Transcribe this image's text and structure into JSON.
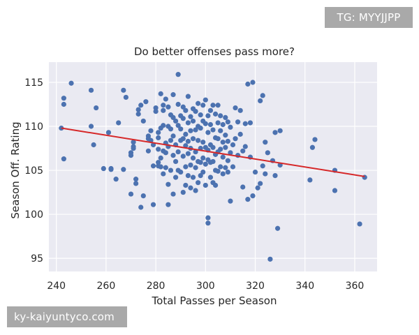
{
  "watermarks": {
    "top": "TG: MYYJJPP",
    "bottom": "ky-kaiyuntyco.com"
  },
  "colors": {
    "plot_bg": "#eaeaf2",
    "grid": "#ffffff",
    "points": "#4c72b0",
    "regression_line": "#d62728"
  },
  "chart_data": {
    "type": "scatter",
    "title": "Do better offenses pass more?",
    "xlabel": "Total Passes per Season",
    "ylabel": "Season Off. Rating",
    "xlim": [
      237,
      369
    ],
    "ylim": [
      93.5,
      117.3
    ],
    "xticks": [
      240,
      260,
      280,
      300,
      320,
      340,
      360
    ],
    "yticks": [
      95,
      100,
      105,
      110,
      115
    ],
    "grid": true,
    "regression": {
      "x1": 242,
      "y1": 109.8,
      "x2": 364,
      "y2": 104.3
    },
    "points": [
      [
        242,
        109.8
      ],
      [
        243,
        113.2
      ],
      [
        243,
        112.5
      ],
      [
        243,
        106.3
      ],
      [
        246,
        114.9
      ],
      [
        254,
        114.1
      ],
      [
        254,
        110.0
      ],
      [
        255,
        107.9
      ],
      [
        256,
        112.1
      ],
      [
        259,
        105.2
      ],
      [
        261,
        109.3
      ],
      [
        262,
        105.2
      ],
      [
        262,
        105.1
      ],
      [
        264,
        104.0
      ],
      [
        265,
        110.4
      ],
      [
        267,
        105.1
      ],
      [
        267,
        114.1
      ],
      [
        268,
        113.3
      ],
      [
        270,
        102.3
      ],
      [
        270,
        107.0
      ],
      [
        270,
        106.7
      ],
      [
        271,
        108.2
      ],
      [
        271,
        107.7
      ],
      [
        271,
        107.5
      ],
      [
        272,
        104.0
      ],
      [
        272,
        103.5
      ],
      [
        273,
        111.9
      ],
      [
        273,
        111.4
      ],
      [
        274,
        112.4
      ],
      [
        274,
        100.8
      ],
      [
        275,
        110.6
      ],
      [
        275,
        102.1
      ],
      [
        276,
        112.8
      ],
      [
        277,
        108.6
      ],
      [
        277,
        108.9
      ],
      [
        277,
        107.2
      ],
      [
        278,
        109.5
      ],
      [
        278,
        108.4
      ],
      [
        279,
        107.9
      ],
      [
        279,
        105.5
      ],
      [
        279,
        101.1
      ],
      [
        280,
        112.1
      ],
      [
        280,
        111.7
      ],
      [
        281,
        109.3
      ],
      [
        281,
        108.7
      ],
      [
        281,
        107.4
      ],
      [
        281,
        105.9
      ],
      [
        281,
        105.5
      ],
      [
        282,
        113.7
      ],
      [
        282,
        109.8
      ],
      [
        282,
        106.4
      ],
      [
        282,
        105.4
      ],
      [
        283,
        112.4
      ],
      [
        283,
        111.8
      ],
      [
        283,
        110.1
      ],
      [
        283,
        107.2
      ],
      [
        283,
        104.6
      ],
      [
        284,
        113.1
      ],
      [
        284,
        108.1
      ],
      [
        284,
        107.0
      ],
      [
        284,
        105.3
      ],
      [
        285,
        112.2
      ],
      [
        285,
        110.0
      ],
      [
        285,
        107.7
      ],
      [
        285,
        103.4
      ],
      [
        285,
        101.1
      ],
      [
        286,
        111.3
      ],
      [
        286,
        109.7
      ],
      [
        286,
        108.4
      ],
      [
        286,
        105.0
      ],
      [
        287,
        113.6
      ],
      [
        287,
        111.0
      ],
      [
        287,
        108.9
      ],
      [
        287,
        106.7
      ],
      [
        287,
        102.3
      ],
      [
        288,
        110.6
      ],
      [
        288,
        107.9
      ],
      [
        288,
        106.0
      ],
      [
        288,
        104.2
      ],
      [
        289,
        112.5
      ],
      [
        289,
        110.1
      ],
      [
        289,
        107.1
      ],
      [
        289,
        105.0
      ],
      [
        289,
        115.9
      ],
      [
        290,
        111.2
      ],
      [
        290,
        109.7
      ],
      [
        290,
        108.4
      ],
      [
        290,
        104.8
      ],
      [
        291,
        112.2
      ],
      [
        291,
        110.9
      ],
      [
        291,
        108.6
      ],
      [
        291,
        106.6
      ],
      [
        291,
        102.5
      ],
      [
        292,
        111.8
      ],
      [
        292,
        109.1
      ],
      [
        292,
        107.8
      ],
      [
        292,
        105.4
      ],
      [
        292,
        103.3
      ],
      [
        293,
        113.4
      ],
      [
        293,
        110.4
      ],
      [
        293,
        108.3
      ],
      [
        293,
        106.9
      ],
      [
        293,
        104.4
      ],
      [
        294,
        111.1
      ],
      [
        294,
        109.5
      ],
      [
        294,
        107.5
      ],
      [
        294,
        105.6
      ],
      [
        294,
        103.0
      ],
      [
        295,
        112.0
      ],
      [
        295,
        110.6
      ],
      [
        295,
        108.6
      ],
      [
        295,
        106.4
      ],
      [
        295,
        104.2
      ],
      [
        296,
        111.7
      ],
      [
        296,
        109.6
      ],
      [
        296,
        107.1
      ],
      [
        296,
        105.3
      ],
      [
        296,
        102.7
      ],
      [
        297,
        112.6
      ],
      [
        297,
        110.0
      ],
      [
        297,
        108.4
      ],
      [
        297,
        106.0
      ],
      [
        297,
        103.6
      ],
      [
        298,
        111.3
      ],
      [
        298,
        109.8
      ],
      [
        298,
        107.5
      ],
      [
        298,
        105.9
      ],
      [
        298,
        104.4
      ],
      [
        299,
        112.4
      ],
      [
        299,
        110.6
      ],
      [
        299,
        108.2
      ],
      [
        299,
        106.4
      ],
      [
        299,
        104.8
      ],
      [
        300,
        113.0
      ],
      [
        300,
        110.3
      ],
      [
        300,
        107.6
      ],
      [
        300,
        105.7
      ],
      [
        300,
        103.3
      ],
      [
        301,
        111.2
      ],
      [
        301,
        109.3
      ],
      [
        301,
        107.3
      ],
      [
        301,
        106.2
      ],
      [
        301,
        99.6
      ],
      [
        301,
        99.0
      ],
      [
        302,
        111.8
      ],
      [
        302,
        110.2
      ],
      [
        302,
        107.9
      ],
      [
        302,
        105.9
      ],
      [
        302,
        104.2
      ],
      [
        303,
        112.4
      ],
      [
        303,
        109.6
      ],
      [
        303,
        107.6
      ],
      [
        303,
        106.0
      ],
      [
        303,
        103.6
      ],
      [
        304,
        111.4
      ],
      [
        304,
        108.7
      ],
      [
        304,
        106.8
      ],
      [
        304,
        105.0
      ],
      [
        304,
        103.3
      ],
      [
        305,
        112.4
      ],
      [
        305,
        110.4
      ],
      [
        305,
        108.6
      ],
      [
        305,
        107.1
      ],
      [
        305,
        104.9
      ],
      [
        306,
        111.2
      ],
      [
        306,
        109.5
      ],
      [
        306,
        107.4
      ],
      [
        306,
        105.4
      ],
      [
        307,
        110.2
      ],
      [
        307,
        108.2
      ],
      [
        307,
        106.5
      ],
      [
        307,
        104.6
      ],
      [
        308,
        111.0
      ],
      [
        308,
        109.0
      ],
      [
        308,
        107.6
      ],
      [
        308,
        105.3
      ],
      [
        309,
        110.5
      ],
      [
        309,
        108.3
      ],
      [
        309,
        106.1
      ],
      [
        309,
        104.8
      ],
      [
        310,
        109.9
      ],
      [
        310,
        107.0
      ],
      [
        310,
        101.5
      ],
      [
        311,
        107.9
      ],
      [
        311,
        105.4
      ],
      [
        312,
        112.1
      ],
      [
        312,
        108.6
      ],
      [
        313,
        110.5
      ],
      [
        313,
        106.7
      ],
      [
        314,
        111.8
      ],
      [
        314,
        109.1
      ],
      [
        315,
        107.2
      ],
      [
        315,
        103.1
      ],
      [
        316,
        110.3
      ],
      [
        316,
        107.7
      ],
      [
        317,
        114.8
      ],
      [
        317,
        101.7
      ],
      [
        318,
        110.4
      ],
      [
        318,
        106.5
      ],
      [
        319,
        115.0
      ],
      [
        319,
        102.1
      ],
      [
        320,
        104.8
      ],
      [
        321,
        103.0
      ],
      [
        322,
        112.9
      ],
      [
        322,
        103.5
      ],
      [
        323,
        113.5
      ],
      [
        323,
        105.5
      ],
      [
        324,
        108.2
      ],
      [
        324,
        104.6
      ],
      [
        325,
        107.0
      ],
      [
        326,
        94.9
      ],
      [
        327,
        106.1
      ],
      [
        328,
        109.3
      ],
      [
        328,
        104.4
      ],
      [
        329,
        98.4
      ],
      [
        330,
        109.5
      ],
      [
        330,
        105.6
      ],
      [
        342,
        103.9
      ],
      [
        343,
        107.6
      ],
      [
        344,
        108.5
      ],
      [
        352,
        105.0
      ],
      [
        352,
        102.7
      ],
      [
        362,
        98.9
      ],
      [
        364,
        104.2
      ]
    ]
  }
}
